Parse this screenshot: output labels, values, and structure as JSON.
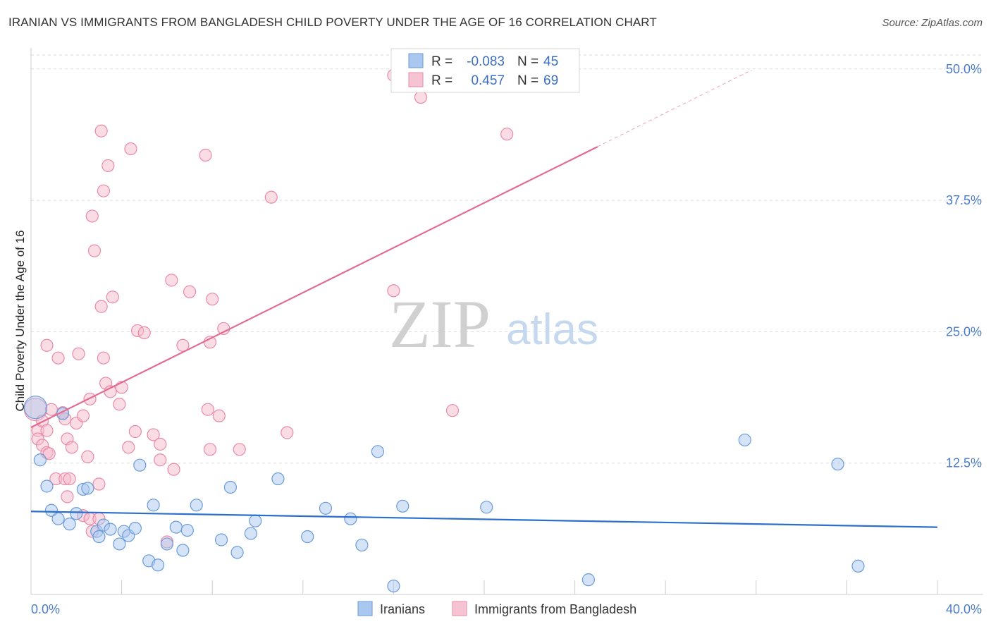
{
  "header": {
    "title": "IRANIAN VS IMMIGRANTS FROM BANGLADESH CHILD POVERTY UNDER THE AGE OF 16 CORRELATION CHART",
    "source": "Source: ZipAtlas.com"
  },
  "watermark": {
    "zip": "ZIP",
    "atlas": "atlas"
  },
  "colors": {
    "blue_fill": "#a9c7ef",
    "blue_stroke": "#6b9bd8",
    "blue_line": "#2a6fcd",
    "pink_fill": "#f6b9cc",
    "pink_stroke": "#e98aa8",
    "pink_line": "#e36a92",
    "axis_label": "#4a7cc9",
    "grid": "#dddddd"
  },
  "legend": {
    "rows": [
      {
        "r_label": "R =",
        "r_value": "-0.083",
        "n_label": "N =",
        "n_value": "45"
      },
      {
        "r_label": "R =",
        "r_value": "0.457",
        "n_label": "N =",
        "n_value": "69"
      }
    ]
  },
  "bottom_legend": {
    "series1": "Iranians",
    "series2": "Immigrants from Bangladesh"
  },
  "chart_data": {
    "type": "scatter",
    "title": "IRANIAN VS IMMIGRANTS FROM BANGLADESH CHILD POVERTY UNDER THE AGE OF 16 CORRELATION CHART",
    "xlabel": "",
    "ylabel": "Child Poverty Under the Age of 16",
    "xlim": [
      0,
      40
    ],
    "ylim": [
      0,
      52
    ],
    "x_tick_labels": [
      "0.0%",
      "40.0%"
    ],
    "y_ticks": [
      12.5,
      25.0,
      37.5,
      50.0
    ],
    "y_tick_labels": [
      "12.5%",
      "25.0%",
      "37.5%",
      "50.0%"
    ],
    "grid": true,
    "legend_position": "top-center",
    "series": [
      {
        "name": "Iranians",
        "stats": {
          "R": -0.083,
          "N": 45
        },
        "trend": {
          "x0": 0,
          "y0": 7.9,
          "x1": 40,
          "y1": 6.4
        },
        "points": [
          [
            0.2,
            17.8,
            "large"
          ],
          [
            0.4,
            12.8
          ],
          [
            0.7,
            10.3
          ],
          [
            0.9,
            8.0
          ],
          [
            1.2,
            7.2
          ],
          [
            1.4,
            17.2
          ],
          [
            1.7,
            6.7
          ],
          [
            2.0,
            7.7
          ],
          [
            2.3,
            10.0
          ],
          [
            2.5,
            10.1
          ],
          [
            2.9,
            6.0
          ],
          [
            3.0,
            5.5
          ],
          [
            3.2,
            6.6
          ],
          [
            3.5,
            6.2
          ],
          [
            3.9,
            4.8
          ],
          [
            4.1,
            6.0
          ],
          [
            4.3,
            5.6
          ],
          [
            4.6,
            6.3
          ],
          [
            4.8,
            12.3
          ],
          [
            5.2,
            3.2
          ],
          [
            5.4,
            8.5
          ],
          [
            5.6,
            2.8
          ],
          [
            6.0,
            4.8
          ],
          [
            6.4,
            6.4
          ],
          [
            6.7,
            4.2
          ],
          [
            6.9,
            6.1
          ],
          [
            7.3,
            8.5
          ],
          [
            8.4,
            5.2
          ],
          [
            8.8,
            10.2
          ],
          [
            9.1,
            4.0
          ],
          [
            9.7,
            5.8
          ],
          [
            9.9,
            7.0
          ],
          [
            10.9,
            11.0
          ],
          [
            12.2,
            5.5
          ],
          [
            13.0,
            8.2
          ],
          [
            14.1,
            7.2
          ],
          [
            14.6,
            4.7
          ],
          [
            15.3,
            13.6
          ],
          [
            16.0,
            0.8
          ],
          [
            16.4,
            8.4
          ],
          [
            20.1,
            8.3
          ],
          [
            24.6,
            1.4
          ],
          [
            31.5,
            14.7
          ],
          [
            35.6,
            12.4
          ],
          [
            36.5,
            2.7
          ]
        ]
      },
      {
        "name": "Immigrants from Bangladesh",
        "stats": {
          "R": 0.457,
          "N": 69
        },
        "trend": {
          "x0": 0,
          "y0": 15.9,
          "x1": 25.0,
          "y1": 42.6
        },
        "trend_dashed": {
          "x0": 25.0,
          "y0": 42.6,
          "x1": 31.8,
          "y1": 49.9
        },
        "points": [
          [
            0.2,
            17.6,
            "large"
          ],
          [
            0.3,
            15.6
          ],
          [
            0.3,
            14.8
          ],
          [
            0.5,
            14.2
          ],
          [
            0.5,
            16.5
          ],
          [
            0.7,
            13.5
          ],
          [
            0.7,
            15.6
          ],
          [
            0.7,
            23.7
          ],
          [
            0.9,
            17.6
          ],
          [
            0.8,
            13.4
          ],
          [
            1.1,
            11.0
          ],
          [
            1.2,
            22.5
          ],
          [
            1.4,
            17.3
          ],
          [
            1.5,
            16.7
          ],
          [
            1.5,
            11.0
          ],
          [
            1.6,
            9.3
          ],
          [
            1.6,
            14.8
          ],
          [
            1.7,
            11.0
          ],
          [
            1.8,
            14.0
          ],
          [
            2.0,
            16.3
          ],
          [
            2.1,
            22.9
          ],
          [
            2.3,
            17.0
          ],
          [
            2.3,
            7.5
          ],
          [
            2.5,
            13.1
          ],
          [
            2.6,
            18.6
          ],
          [
            2.6,
            7.2
          ],
          [
            2.7,
            6.0
          ],
          [
            2.7,
            36.0
          ],
          [
            2.8,
            32.7
          ],
          [
            3.0,
            10.5
          ],
          [
            3.0,
            7.2
          ],
          [
            3.1,
            27.4
          ],
          [
            3.1,
            44.1
          ],
          [
            3.2,
            38.4
          ],
          [
            3.2,
            22.5
          ],
          [
            3.3,
            20.1
          ],
          [
            3.4,
            40.8
          ],
          [
            3.5,
            19.3
          ],
          [
            3.6,
            28.3
          ],
          [
            3.9,
            18.1
          ],
          [
            4.0,
            19.7
          ],
          [
            4.3,
            14.0
          ],
          [
            4.4,
            42.4
          ],
          [
            4.6,
            15.5
          ],
          [
            4.7,
            25.1
          ],
          [
            5.0,
            24.9
          ],
          [
            5.4,
            15.2
          ],
          [
            5.7,
            14.3
          ],
          [
            5.7,
            12.8
          ],
          [
            6.0,
            5.0
          ],
          [
            6.2,
            29.9
          ],
          [
            6.3,
            11.9
          ],
          [
            6.7,
            23.7
          ],
          [
            7.0,
            28.8
          ],
          [
            7.7,
            41.8
          ],
          [
            7.8,
            17.6
          ],
          [
            7.9,
            24.0
          ],
          [
            7.9,
            13.8
          ],
          [
            8.0,
            28.1
          ],
          [
            8.3,
            17.0
          ],
          [
            9.2,
            13.8
          ],
          [
            10.6,
            37.8
          ],
          [
            11.3,
            15.4
          ],
          [
            16.0,
            28.9
          ],
          [
            16.0,
            49.4
          ],
          [
            17.2,
            47.3
          ],
          [
            18.6,
            17.5
          ],
          [
            21.0,
            43.8
          ],
          [
            8.5,
            25.3
          ]
        ]
      }
    ]
  }
}
